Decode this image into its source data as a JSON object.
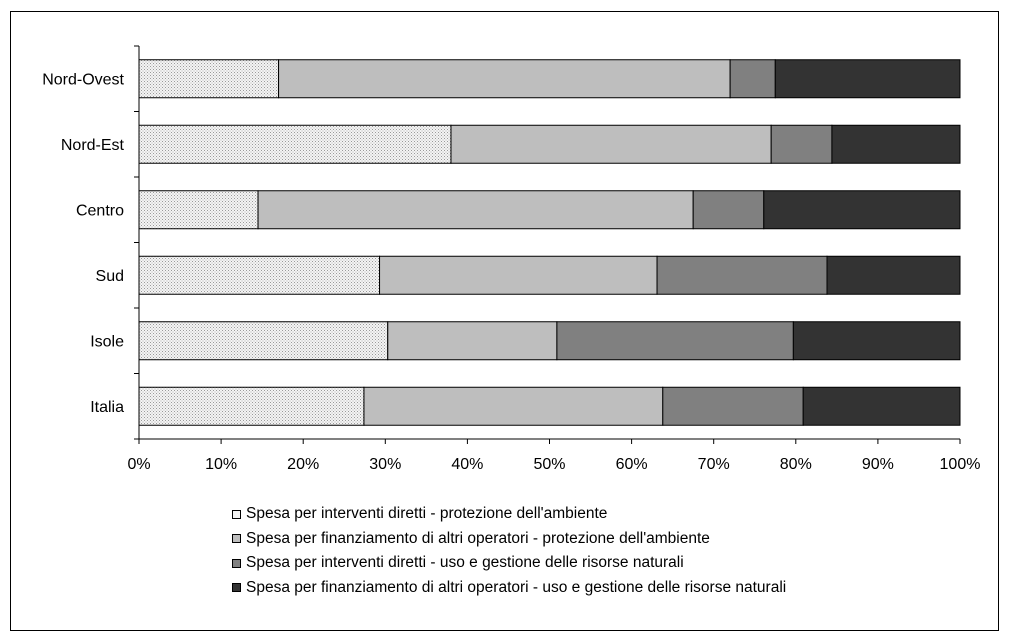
{
  "chart_data": {
    "type": "bar",
    "orientation": "horizontal",
    "stacked": "percent",
    "categories": [
      "Nord-Ovest",
      "Nord-Est",
      "Centro",
      "Sud",
      "Isole",
      "Italia"
    ],
    "series": [
      {
        "name": "Spesa per interventi diretti - protezione dell'ambiente",
        "color": "#efefef",
        "pattern": "dots",
        "values": [
          17.0,
          38.0,
          14.5,
          29.3,
          30.3,
          27.4
        ]
      },
      {
        "name": "Spesa per finanziamento di altri operatori - protezione dell'ambiente",
        "color": "#bebebe",
        "values": [
          55.0,
          39.0,
          53.0,
          33.8,
          20.6,
          36.4
        ]
      },
      {
        "name": "Spesa per interventi diretti - uso e gestione delle risorse naturali",
        "color": "#808080",
        "values": [
          5.5,
          7.4,
          8.6,
          20.7,
          28.8,
          17.1
        ]
      },
      {
        "name": "Spesa per finanziamento di altri operatori - uso e gestione delle risorse naturali",
        "color": "#333333",
        "values": [
          22.5,
          15.6,
          23.9,
          16.2,
          20.3,
          19.1
        ]
      }
    ],
    "xticks": [
      "0%",
      "10%",
      "20%",
      "30%",
      "40%",
      "50%",
      "60%",
      "70%",
      "80%",
      "90%",
      "100%"
    ],
    "xlim": [
      0,
      100
    ],
    "grid": false,
    "legend_position": "bottom"
  }
}
